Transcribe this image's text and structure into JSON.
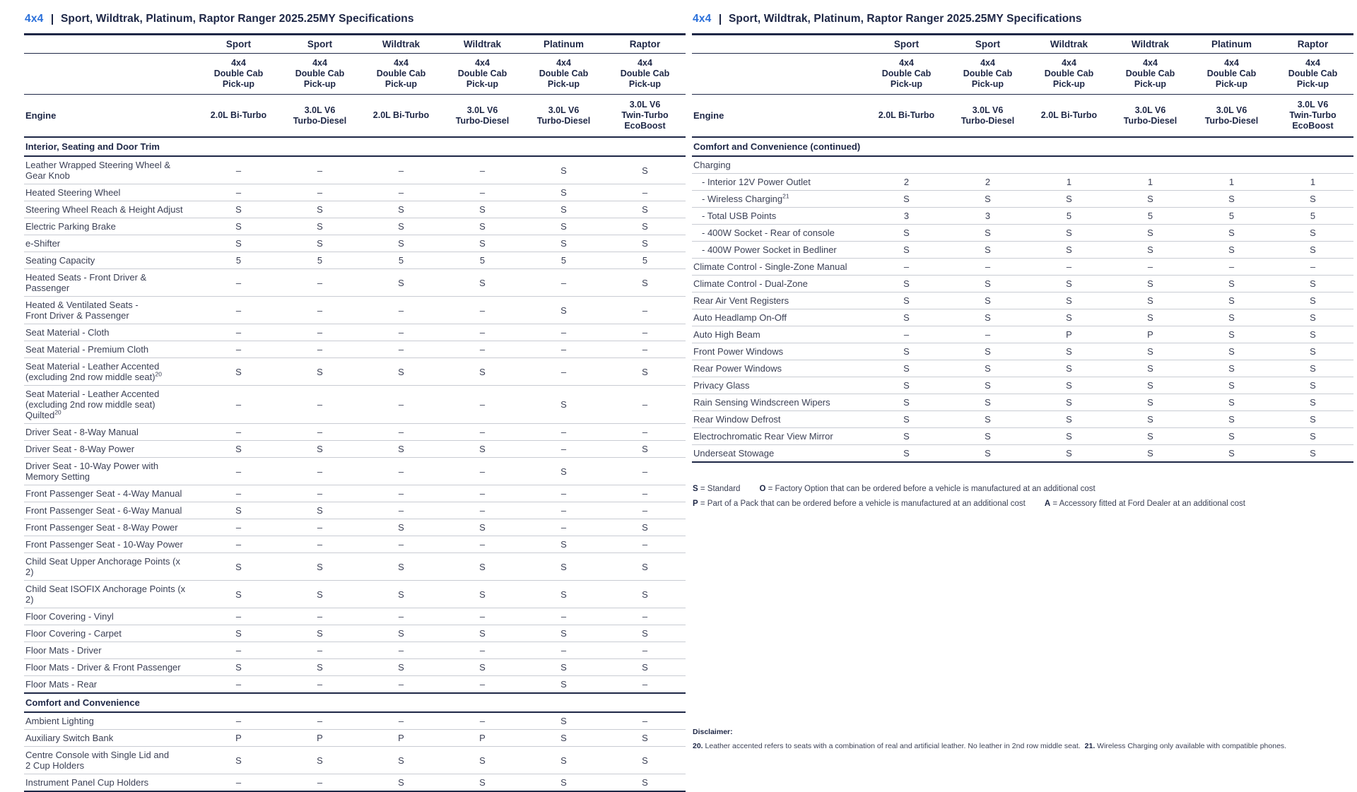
{
  "shared": {
    "title_prefix": "4x4",
    "title": "Sport, Wildtrak, Platinum, Raptor Ranger 2025.25MY Specifications",
    "columns": [
      "Sport",
      "Sport",
      "Wildtrak",
      "Wildtrak",
      "Platinum",
      "Raptor"
    ],
    "cab": "4x4\nDouble Cab\nPick-up",
    "engine_label": "Engine",
    "engines": [
      "2.0L Bi-Turbo",
      "3.0L V6\nTurbo-Diesel",
      "2.0L Bi-Turbo",
      "3.0L V6\nTurbo-Diesel",
      "3.0L V6\nTurbo-Diesel",
      "3.0L V6\nTwin-Turbo\nEcoBoost"
    ]
  },
  "left": {
    "table": {
      "sections": [
        {
          "header": "Interior, Seating and Door Trim",
          "rows": [
            {
              "label": "Leather Wrapped Steering Wheel &\nGear Knob",
              "values": [
                "–",
                "–",
                "–",
                "–",
                "S",
                "S"
              ]
            },
            {
              "label": "Heated Steering Wheel",
              "values": [
                "–",
                "–",
                "–",
                "–",
                "S",
                "–"
              ]
            },
            {
              "label": "Steering Wheel Reach & Height Adjust",
              "values": [
                "S",
                "S",
                "S",
                "S",
                "S",
                "S"
              ]
            },
            {
              "label": "Electric Parking Brake",
              "values": [
                "S",
                "S",
                "S",
                "S",
                "S",
                "S"
              ]
            },
            {
              "label": "e-Shifter",
              "values": [
                "S",
                "S",
                "S",
                "S",
                "S",
                "S"
              ]
            },
            {
              "label": "Seating Capacity",
              "values": [
                "5",
                "5",
                "5",
                "5",
                "5",
                "5"
              ]
            },
            {
              "label": "Heated Seats - Front Driver & Passenger",
              "values": [
                "–",
                "–",
                "S",
                "S",
                "–",
                "S"
              ]
            },
            {
              "label": "Heated & Ventilated Seats -\nFront Driver & Passenger",
              "values": [
                "–",
                "–",
                "–",
                "–",
                "S",
                "–"
              ]
            },
            {
              "label": "Seat Material - Cloth",
              "values": [
                "–",
                "–",
                "–",
                "–",
                "–",
                "–"
              ]
            },
            {
              "label": "Seat Material - Premium Cloth",
              "values": [
                "–",
                "–",
                "–",
                "–",
                "–",
                "–"
              ]
            },
            {
              "label": "Seat Material - Leather Accented\n(excluding 2nd row middle seat)",
              "sup": "20",
              "values": [
                "S",
                "S",
                "S",
                "S",
                "–",
                "S"
              ]
            },
            {
              "label": "Seat Material - Leather Accented\n(excluding 2nd row middle seat)\nQuilted",
              "sup": "20",
              "values": [
                "–",
                "–",
                "–",
                "–",
                "S",
                "–"
              ]
            },
            {
              "label": "Driver Seat - 8-Way Manual",
              "values": [
                "–",
                "–",
                "–",
                "–",
                "–",
                "–"
              ]
            },
            {
              "label": "Driver Seat - 8-Way Power",
              "values": [
                "S",
                "S",
                "S",
                "S",
                "–",
                "S"
              ]
            },
            {
              "label": "Driver Seat - 10-Way Power with\nMemory Setting",
              "values": [
                "–",
                "–",
                "–",
                "–",
                "S",
                "–"
              ]
            },
            {
              "label": "Front Passenger Seat - 4-Way Manual",
              "values": [
                "–",
                "–",
                "–",
                "–",
                "–",
                "–"
              ]
            },
            {
              "label": "Front Passenger Seat - 6-Way Manual",
              "values": [
                "S",
                "S",
                "–",
                "–",
                "–",
                "–"
              ]
            },
            {
              "label": "Front Passenger Seat - 8-Way Power",
              "values": [
                "–",
                "–",
                "S",
                "S",
                "–",
                "S"
              ]
            },
            {
              "label": "Front Passenger Seat - 10-Way Power",
              "values": [
                "–",
                "–",
                "–",
                "–",
                "S",
                "–"
              ]
            },
            {
              "label": "Child Seat Upper Anchorage Points (x 2)",
              "values": [
                "S",
                "S",
                "S",
                "S",
                "S",
                "S"
              ]
            },
            {
              "label": "Child Seat ISOFIX Anchorage Points (x 2)",
              "values": [
                "S",
                "S",
                "S",
                "S",
                "S",
                "S"
              ]
            },
            {
              "label": "Floor Covering - Vinyl",
              "values": [
                "–",
                "–",
                "–",
                "–",
                "–",
                "–"
              ]
            },
            {
              "label": "Floor Covering - Carpet",
              "values": [
                "S",
                "S",
                "S",
                "S",
                "S",
                "S"
              ]
            },
            {
              "label": "Floor Mats - Driver",
              "values": [
                "–",
                "–",
                "–",
                "–",
                "–",
                "–"
              ]
            },
            {
              "label": "Floor Mats - Driver & Front Passenger",
              "values": [
                "S",
                "S",
                "S",
                "S",
                "S",
                "S"
              ]
            },
            {
              "label": "Floor Mats - Rear",
              "values": [
                "–",
                "–",
                "–",
                "–",
                "S",
                "–"
              ]
            }
          ]
        },
        {
          "header": "Comfort and Convenience",
          "rows": [
            {
              "label": "Ambient Lighting",
              "values": [
                "–",
                "–",
                "–",
                "–",
                "S",
                "–"
              ]
            },
            {
              "label": "Auxiliary Switch Bank",
              "values": [
                "P",
                "P",
                "P",
                "P",
                "S",
                "S"
              ]
            },
            {
              "label": "Centre Console with Single Lid and\n2 Cup Holders",
              "values": [
                "S",
                "S",
                "S",
                "S",
                "S",
                "S"
              ]
            },
            {
              "label": "Instrument Panel Cup Holders",
              "values": [
                "–",
                "–",
                "S",
                "S",
                "S",
                "S"
              ]
            }
          ]
        }
      ]
    }
  },
  "right": {
    "table": {
      "sections": [
        {
          "header": "Comfort and Convenience (continued)",
          "rows": [
            {
              "label": "Charging",
              "values": [
                "",
                "",
                "",
                "",
                "",
                ""
              ]
            },
            {
              "label": "- Interior 12V Power Outlet",
              "indent": true,
              "values": [
                "2",
                "2",
                "1",
                "1",
                "1",
                "1"
              ]
            },
            {
              "label": "- Wireless Charging",
              "sup": "21",
              "indent": true,
              "values": [
                "S",
                "S",
                "S",
                "S",
                "S",
                "S"
              ]
            },
            {
              "label": "- Total USB Points",
              "indent": true,
              "values": [
                "3",
                "3",
                "5",
                "5",
                "5",
                "5"
              ]
            },
            {
              "label": "- 400W Socket - Rear of console",
              "indent": true,
              "values": [
                "S",
                "S",
                "S",
                "S",
                "S",
                "S"
              ]
            },
            {
              "label": "- 400W Power Socket in Bedliner",
              "indent": true,
              "values": [
                "S",
                "S",
                "S",
                "S",
                "S",
                "S"
              ]
            },
            {
              "label": "Climate Control - Single-Zone Manual",
              "values": [
                "–",
                "–",
                "–",
                "–",
                "–",
                "–"
              ]
            },
            {
              "label": "Climate Control - Dual-Zone",
              "values": [
                "S",
                "S",
                "S",
                "S",
                "S",
                "S"
              ]
            },
            {
              "label": "Rear Air Vent Registers",
              "values": [
                "S",
                "S",
                "S",
                "S",
                "S",
                "S"
              ]
            },
            {
              "label": "Auto Headlamp On-Off",
              "values": [
                "S",
                "S",
                "S",
                "S",
                "S",
                "S"
              ]
            },
            {
              "label": "Auto High Beam",
              "values": [
                "–",
                "–",
                "P",
                "P",
                "S",
                "S"
              ]
            },
            {
              "label": "Front Power Windows",
              "values": [
                "S",
                "S",
                "S",
                "S",
                "S",
                "S"
              ]
            },
            {
              "label": "Rear Power Windows",
              "values": [
                "S",
                "S",
                "S",
                "S",
                "S",
                "S"
              ]
            },
            {
              "label": "Privacy Glass",
              "values": [
                "S",
                "S",
                "S",
                "S",
                "S",
                "S"
              ]
            },
            {
              "label": "Rain Sensing Windscreen Wipers",
              "values": [
                "S",
                "S",
                "S",
                "S",
                "S",
                "S"
              ]
            },
            {
              "label": "Rear Window Defrost",
              "values": [
                "S",
                "S",
                "S",
                "S",
                "S",
                "S"
              ]
            },
            {
              "label": "Electrochromatic Rear View Mirror",
              "values": [
                "S",
                "S",
                "S",
                "S",
                "S",
                "S"
              ]
            },
            {
              "label": "Underseat Stowage",
              "values": [
                "S",
                "S",
                "S",
                "S",
                "S",
                "S"
              ]
            }
          ]
        }
      ]
    },
    "legend": {
      "lines": [
        [
          {
            "key": "S",
            "text": "Standard"
          },
          {
            "key": "O",
            "text": "Factory Option that can be ordered before a vehicle is manufactured at an additional cost"
          }
        ],
        [
          {
            "key": "P",
            "text": "Part of a Pack that can be ordered before a vehicle is manufactured at an additional cost"
          },
          {
            "key": "A",
            "text": "Accessory fitted at Ford Dealer at an additional cost"
          }
        ]
      ]
    },
    "disclaimer": {
      "heading": "Disclaimer:",
      "notes": [
        {
          "num": "20.",
          "text": "Leather accented refers to seats with a combination of real and artificial leather. No leather in 2nd row middle seat."
        },
        {
          "num": "21.",
          "text": "Wireless Charging only available with compatible phones."
        }
      ]
    }
  }
}
